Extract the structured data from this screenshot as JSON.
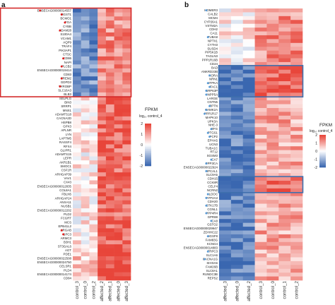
{
  "colors": {
    "low": "#3a67b0",
    "mid": "#ffffff",
    "high": "#e8453a",
    "highlight_red": "#d42a2a",
    "highlight_blue": "#3f6fad",
    "marker_red": "#e0201f",
    "marker_blue": "#5b9bd5"
  },
  "panels": [
    {
      "letter": "a",
      "columns": [
        "control_3",
        "control_0",
        "control_2",
        "affected_2",
        "affected_1",
        "affected_0",
        "affected_3"
      ],
      "genes": [
        {
          "label": "ENSECAG00000014557",
          "mark": "red"
        },
        {
          "label": "MGST1",
          "mark": "red"
        },
        {
          "label": "BCMO1",
          "mark": ""
        },
        {
          "label": "FGA",
          "mark": "red"
        },
        {
          "label": "CYBB",
          "mark": ""
        },
        {
          "label": "ADAM28",
          "mark": "red"
        },
        {
          "label": "S100A4",
          "mark": ""
        },
        {
          "label": "VCAM1",
          "mark": ""
        },
        {
          "label": "AQP9",
          "mark": ""
        },
        {
          "label": "TRAF4",
          "mark": ""
        },
        {
          "label": "PIK3AP1",
          "mark": ""
        },
        {
          "label": "CTSC",
          "mark": ""
        },
        {
          "label": "CD86",
          "mark": "red"
        },
        {
          "label": "NAPI",
          "mark": ""
        },
        {
          "label": "PLCB2",
          "mark": "red"
        },
        {
          "label": "ENSECAG00000019414",
          "mark": ""
        },
        {
          "label": "CD83",
          "mark": ""
        },
        {
          "label": "TREM2",
          "mark": "red"
        },
        {
          "label": "GDPD3",
          "mark": ""
        },
        {
          "label": "TYROBP",
          "mark": "red"
        },
        {
          "label": "SLC16A3",
          "mark": ""
        },
        {
          "label": "BLB3",
          "mark": ""
        },
        {
          "label": "SELPLG",
          "mark": ""
        },
        {
          "label": "BIN3",
          "mark": ""
        },
        {
          "label": "SRRP1",
          "mark": ""
        },
        {
          "label": "MNX1",
          "mark": ""
        },
        {
          "label": "ADAMTS18",
          "mark": ""
        },
        {
          "label": "CACNA2D",
          "mark": ""
        },
        {
          "label": "HSPB8",
          "mark": ""
        },
        {
          "label": "GPX3",
          "mark": ""
        },
        {
          "label": "APLNR",
          "mark": ""
        },
        {
          "label": "LYN",
          "mark": ""
        },
        {
          "label": "LAPTM5",
          "mark": ""
        },
        {
          "label": "RASSF4",
          "mark": ""
        },
        {
          "label": "RFX4",
          "mark": ""
        },
        {
          "label": "GLIPR1",
          "mark": ""
        },
        {
          "label": "ADAMTS15",
          "mark": ""
        },
        {
          "label": "LEPR",
          "mark": ""
        },
        {
          "label": "AKR1B1",
          "mark": ""
        },
        {
          "label": "SMOC1",
          "mark": ""
        },
        {
          "label": "CSF1R",
          "mark": ""
        },
        {
          "label": "ARHGAP39",
          "mark": ""
        },
        {
          "label": "VAV1",
          "mark": ""
        },
        {
          "label": "CX43",
          "mark": ""
        },
        {
          "label": "ENSECAG00000012835",
          "mark": ""
        },
        {
          "label": "COL8A1",
          "mark": ""
        },
        {
          "label": "FBLN5",
          "mark": ""
        },
        {
          "label": "ARHGAP24",
          "mark": ""
        },
        {
          "label": "ANXA11",
          "mark": ""
        },
        {
          "label": "NUSB1",
          "mark": ""
        },
        {
          "label": "ENSECAG00000012202",
          "mark": ""
        },
        {
          "label": "PLD2",
          "mark": ""
        },
        {
          "label": "FCGRT",
          "mark": ""
        },
        {
          "label": "MCS",
          "mark": ""
        },
        {
          "label": "EPB41L2",
          "mark": ""
        },
        {
          "label": "ARGAB",
          "mark": "red"
        },
        {
          "label": "GPC3",
          "mark": "red"
        },
        {
          "label": "ARMC3",
          "mark": ""
        },
        {
          "label": "B3H1",
          "mark": ""
        },
        {
          "label": "ST3GAL6",
          "mark": ""
        },
        {
          "label": "AGT",
          "mark": ""
        },
        {
          "label": "PDE1",
          "mark": ""
        },
        {
          "label": "ENSECAG00000022508",
          "mark": ""
        },
        {
          "label": "ENSECAG00000024750",
          "mark": ""
        },
        {
          "label": "CELSR1",
          "mark": ""
        },
        {
          "label": "PLD4",
          "mark": ""
        },
        {
          "label": "ENSECAG00000014174",
          "mark": ""
        },
        {
          "label": "CD84",
          "mark": ""
        }
      ],
      "highlight_rows": [
        [
          0,
          21
        ]
      ]
    },
    {
      "letter": "b",
      "columns": [
        "affected_3",
        "affected_0",
        "affected_2",
        "control_3",
        "control_0",
        "control_1",
        "control_2"
      ],
      "genes": [
        {
          "label": "HOMER3",
          "mark": "blue"
        },
        {
          "label": "CALB2",
          "mark": ""
        },
        {
          "label": "MCM4",
          "mark": ""
        },
        {
          "label": "CYP26A1",
          "mark": ""
        },
        {
          "label": "VSTM2A",
          "mark": ""
        },
        {
          "label": "CDH2",
          "mark": ""
        },
        {
          "label": "CA11",
          "mark": ""
        },
        {
          "label": "TUBA8",
          "mark": "blue"
        },
        {
          "label": "NPTX1",
          "mark": ""
        },
        {
          "label": "CYTH3",
          "mark": ""
        },
        {
          "label": "SUSD4",
          "mark": ""
        },
        {
          "label": "PIP5K1B",
          "mark": ""
        },
        {
          "label": "TAGLN3",
          "mark": ""
        },
        {
          "label": "PPP1R16B",
          "mark": ""
        },
        {
          "label": "CD24",
          "mark": ""
        },
        {
          "label": "BAD",
          "mark": ""
        },
        {
          "label": "ANKRD33B",
          "mark": ""
        },
        {
          "label": "RORA",
          "mark": "blue"
        },
        {
          "label": "NRN1",
          "mark": ""
        },
        {
          "label": "ITPKA",
          "mark": "blue"
        },
        {
          "label": "TAC1",
          "mark": "blue"
        },
        {
          "label": "GRP63P",
          "mark": "blue"
        },
        {
          "label": "INPP5A",
          "mark": "blue"
        },
        {
          "label": "LARGE",
          "mark": ""
        },
        {
          "label": "CNTN5",
          "mark": ""
        },
        {
          "label": "RPTN",
          "mark": "blue"
        },
        {
          "label": "CAMK2A",
          "mark": "blue"
        },
        {
          "label": "PPP1R17",
          "mark": "blue"
        },
        {
          "label": "MAPK10",
          "mark": ""
        },
        {
          "label": "UPK3A",
          "mark": ""
        },
        {
          "label": "NHE-3",
          "mark": ""
        },
        {
          "label": "ZFG",
          "mark": "blue"
        },
        {
          "label": "PTGS1",
          "mark": "blue"
        },
        {
          "label": "PCP2",
          "mark": "blue"
        },
        {
          "label": "EPHA5",
          "mark": ""
        },
        {
          "label": "UCN3",
          "mark": ""
        },
        {
          "label": "TUBA1C",
          "mark": ""
        },
        {
          "label": "RT12",
          "mark": ""
        },
        {
          "label": "SGSM3",
          "mark": ""
        },
        {
          "label": "CA7",
          "mark": "blue"
        },
        {
          "label": "PPP3CA",
          "mark": "blue"
        },
        {
          "label": "ENSECAG00000022924",
          "mark": ""
        },
        {
          "label": "HPCAL1",
          "mark": "blue"
        },
        {
          "label": "SLC9A5",
          "mark": ""
        },
        {
          "label": "CDH15",
          "mark": ""
        },
        {
          "label": "CCK8R",
          "mark": ""
        },
        {
          "label": "CELF4",
          "mark": ""
        },
        {
          "label": "NCRN2",
          "mark": ""
        },
        {
          "label": "ALDOC",
          "mark": "blue"
        },
        {
          "label": "ATP2A3",
          "mark": "blue"
        },
        {
          "label": "CDH20",
          "mark": ""
        },
        {
          "label": "STK17B",
          "mark": "blue"
        },
        {
          "label": "CGNL1",
          "mark": ""
        },
        {
          "label": "PPP4R4",
          "mark": "blue"
        },
        {
          "label": "GPR88",
          "mark": ""
        },
        {
          "label": "CA8",
          "mark": "blue"
        },
        {
          "label": "GSTO2",
          "mark": ""
        },
        {
          "label": "ENSECAG00000029947",
          "mark": ""
        },
        {
          "label": "ZDHHC22",
          "mark": ""
        },
        {
          "label": "IGSF8",
          "mark": "blue"
        },
        {
          "label": "FAM83G",
          "mark": ""
        },
        {
          "label": "KCNG4",
          "mark": ""
        },
        {
          "label": "ENSECAG00000014883",
          "mark": ""
        },
        {
          "label": "TRPC3",
          "mark": "blue"
        },
        {
          "label": "SLC1A6",
          "mark": ""
        },
        {
          "label": "CACNA1G",
          "mark": "blue"
        },
        {
          "label": "SHISA6",
          "mark": ""
        },
        {
          "label": "FAM26B",
          "mark": ""
        },
        {
          "label": "SLC8A1",
          "mark": ""
        },
        {
          "label": "RUNDC3B",
          "mark": ""
        },
        {
          "label": "REPS2",
          "mark": ""
        }
      ],
      "highlight_rows": [
        [
          15,
          22
        ],
        [
          44,
          47
        ]
      ]
    }
  ],
  "legend": {
    "title": "FPKM",
    "subtitle": "log₁₀ control_4",
    "ticks": [
      "2",
      "1",
      "0",
      "-1",
      "-2"
    ]
  }
}
